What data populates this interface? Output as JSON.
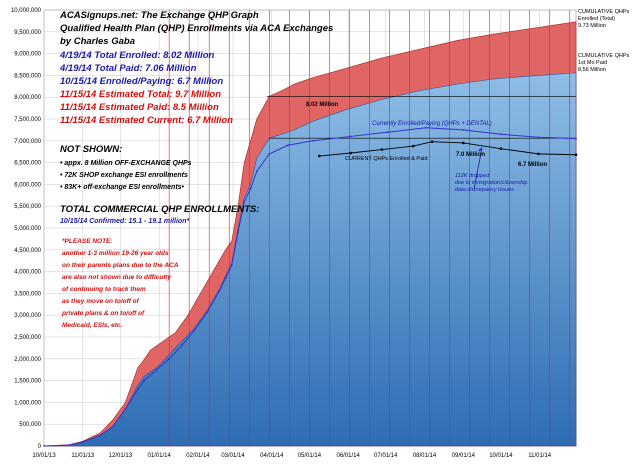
{
  "chart_data": {
    "type": "area",
    "title": "ACASignups.net: The Exchange QHP Graph",
    "subtitle_lines": [
      "Qualified Health Plan (QHP) Enrollments via ACA Exchanges",
      "by Charles Gaba"
    ],
    "ylim": [
      0,
      10000000
    ],
    "y_ticks": [
      "0",
      "500,000",
      "1,000,000",
      "1,500,000",
      "2,000,000",
      "2,500,000",
      "3,000,000",
      "3,500,000",
      "4,000,000",
      "4,500,000",
      "5,000,000",
      "5,500,000",
      "6,000,000",
      "6,500,000",
      "7,000,000",
      "7,500,000",
      "8,000,000",
      "8,500,000",
      "9,000,000",
      "9,500,000",
      "10,000,000"
    ],
    "x_ticks": [
      "10/01/13",
      "11/01/13",
      "12/01/13",
      "01/01/14",
      "02/01/14",
      "03/01/14",
      "04/01/14",
      "05/01/14",
      "06/01/14",
      "07/01/14",
      "08/01/14",
      "09/01/14",
      "10/01/14",
      "11/01/14"
    ],
    "grid": true,
    "x_range_days": [
      0,
      425
    ],
    "series": [
      {
        "name": "CUMULATIVE QHPs Enrolled (Total)",
        "color": "#e06666",
        "points": [
          [
            0,
            0
          ],
          [
            20,
            30000
          ],
          [
            30,
            100000
          ],
          [
            45,
            300000
          ],
          [
            55,
            600000
          ],
          [
            65,
            1000000
          ],
          [
            75,
            1800000
          ],
          [
            78,
            1900000
          ],
          [
            85,
            2200000
          ],
          [
            95,
            2400000
          ],
          [
            105,
            2600000
          ],
          [
            115,
            3000000
          ],
          [
            125,
            3500000
          ],
          [
            135,
            4000000
          ],
          [
            145,
            4500000
          ],
          [
            150,
            4700000
          ],
          [
            155,
            5500000
          ],
          [
            160,
            6500000
          ],
          [
            170,
            7500000
          ],
          [
            180,
            8020000
          ],
          [
            190,
            8150000
          ],
          [
            200,
            8300000
          ],
          [
            215,
            8450000
          ],
          [
            240,
            8650000
          ],
          [
            270,
            8900000
          ],
          [
            300,
            9100000
          ],
          [
            330,
            9300000
          ],
          [
            360,
            9450000
          ],
          [
            395,
            9600000
          ],
          [
            425,
            9730000
          ]
        ]
      },
      {
        "name": "CUMULATIVE QHPs 1st Mo Paid",
        "color": "#5b9bd5",
        "points": [
          [
            0,
            0
          ],
          [
            20,
            20000
          ],
          [
            30,
            80000
          ],
          [
            45,
            250000
          ],
          [
            55,
            450000
          ],
          [
            65,
            850000
          ],
          [
            75,
            1400000
          ],
          [
            80,
            1600000
          ],
          [
            90,
            1800000
          ],
          [
            100,
            2100000
          ],
          [
            110,
            2400000
          ],
          [
            120,
            2700000
          ],
          [
            130,
            3100000
          ],
          [
            140,
            3600000
          ],
          [
            145,
            3900000
          ],
          [
            150,
            4200000
          ],
          [
            155,
            5000000
          ],
          [
            160,
            5700000
          ],
          [
            165,
            6000000
          ],
          [
            170,
            6600000
          ],
          [
            180,
            7060000
          ],
          [
            190,
            7150000
          ],
          [
            200,
            7250000
          ],
          [
            215,
            7450000
          ],
          [
            240,
            7700000
          ],
          [
            270,
            7950000
          ],
          [
            300,
            8150000
          ],
          [
            330,
            8300000
          ],
          [
            360,
            8420000
          ],
          [
            395,
            8500000
          ],
          [
            425,
            8560000
          ]
        ]
      },
      {
        "name": "CURRENT QHPs Enrolled & Paid",
        "color": "#000000",
        "points": [
          [
            220,
            6650000
          ],
          [
            245,
            6720000
          ],
          [
            270,
            6800000
          ],
          [
            295,
            6880000
          ],
          [
            310,
            6980000
          ],
          [
            335,
            6950000
          ],
          [
            365,
            6820000
          ],
          [
            395,
            6700000
          ],
          [
            425,
            6680000
          ]
        ]
      },
      {
        "name": "Currently Enrolled/Paying (QHPs + DENTAL)",
        "color": "#3333cc",
        "points": [
          [
            0,
            0
          ],
          [
            20,
            20000
          ],
          [
            30,
            80000
          ],
          [
            45,
            250000
          ],
          [
            55,
            450000
          ],
          [
            65,
            850000
          ],
          [
            75,
            1300000
          ],
          [
            80,
            1500000
          ],
          [
            90,
            1750000
          ],
          [
            100,
            2000000
          ],
          [
            110,
            2300000
          ],
          [
            120,
            2650000
          ],
          [
            130,
            3050000
          ],
          [
            140,
            3550000
          ],
          [
            145,
            3850000
          ],
          [
            150,
            4150000
          ],
          [
            155,
            4900000
          ],
          [
            160,
            5600000
          ],
          [
            165,
            5900000
          ],
          [
            170,
            6300000
          ],
          [
            180,
            6700000
          ],
          [
            195,
            6900000
          ],
          [
            215,
            7000000
          ],
          [
            245,
            7100000
          ],
          [
            275,
            7200000
          ],
          [
            305,
            7300000
          ],
          [
            335,
            7250000
          ],
          [
            365,
            7150000
          ],
          [
            395,
            7080000
          ],
          [
            425,
            7050000
          ]
        ]
      }
    ],
    "annotations": {
      "stats": [
        {
          "text": "4/19/14 Total Enrolled: 8.02 Million",
          "color": "#1a1aa6"
        },
        {
          "text": "4/19/14 Total Paid: 7.06 Million",
          "color": "#1a1aa6"
        },
        {
          "text": "10/15/14 Enrolled/Paying: 6.7 Million",
          "color": "#1a1aa6"
        },
        {
          "text": "11/15/14 Estimated Total: 9.7 Million",
          "color": "#d01010"
        },
        {
          "text": "11/15/14 Estimated Paid: 8.5 Million",
          "color": "#d01010"
        },
        {
          "text": "11/15/14 Estimated Current: 6.7 Million",
          "color": "#d01010"
        }
      ],
      "not_shown_title": "NOT SHOWN:",
      "not_shown_items": [
        "• appx. 8 Million OFF-EXCHANGE QHPs",
        "• 72K SHOP exchange ESI enrollments",
        "• 83K+ off-exchange ESI enrollments•"
      ],
      "total_commercial_title": "TOTAL COMMERCIAL QHP ENROLLMENTS:",
      "total_commercial_value": "10/15/14 Confirmed: 15.1 - 19.1 million*",
      "note_lines": [
        "*PLEASE NOTE:",
        "another 1-3 million 19-26 year olds",
        "on their parents plans due to the ACA",
        "are also not shown due to difficulty",
        "of continuing to track them",
        "as they move on to/off of",
        "private plans & on to/off of",
        "Medicaid, ESIs, etc."
      ],
      "right_total_lines": [
        "CUMULATIVE QHPs",
        "Enrolled (Total)",
        "9.73 Million"
      ],
      "right_paid_lines": [
        "CUMULATIVE QHPs",
        "1st Mo Paid",
        "8.56 Million"
      ],
      "label_802": "8.02 Million",
      "label_current_line": "CURRENT QHPs Enrolled & Paid",
      "label_70": "7.0 Million",
      "label_67": "6.7 Million",
      "label_dental": "Currently Enrolled/Paying (QHPs + DENTAL)",
      "label_dropped_lines": [
        "112K dropped",
        "due to immigration/citizenship",
        "data discrepancy issues"
      ]
    }
  },
  "colors": {
    "plot_bg": "#ffffff",
    "total_fill": "#e06666",
    "paid_fill_top": "#8fbde6",
    "paid_fill_bottom": "#2e6db4",
    "redline": "#dd2222",
    "grid": "#c8c8c8"
  }
}
